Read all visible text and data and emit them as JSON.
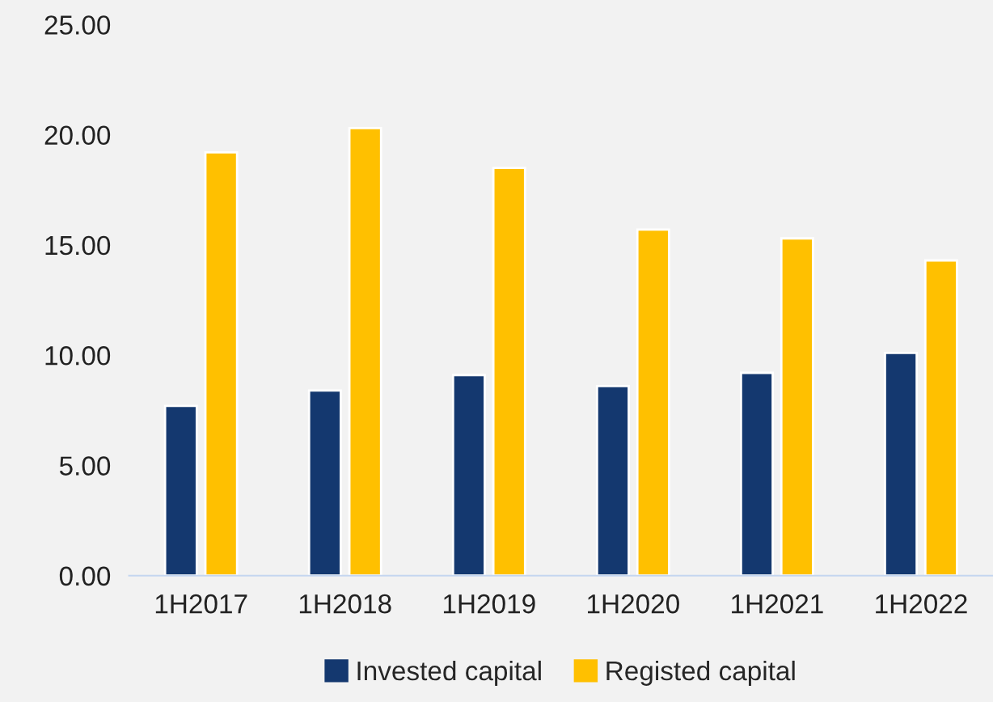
{
  "chart_data": {
    "type": "bar",
    "categories": [
      "1H2017",
      "1H2018",
      "1H2019",
      "1H2020",
      "1H2021",
      "1H2022"
    ],
    "series": [
      {
        "name": "Invested capital",
        "color": "#14386f",
        "values": [
          7.7,
          8.4,
          9.1,
          8.6,
          9.2,
          10.1
        ]
      },
      {
        "name": "Registed capital",
        "color": "#ffc000",
        "values": [
          19.2,
          20.3,
          18.5,
          15.7,
          15.3,
          14.3
        ]
      }
    ],
    "ylim": [
      0,
      25
    ],
    "yticks": [
      {
        "value": 0,
        "label": "0.00"
      },
      {
        "value": 5,
        "label": "5.00"
      },
      {
        "value": 10,
        "label": "10.00"
      },
      {
        "value": 15,
        "label": "15.00"
      },
      {
        "value": 20,
        "label": "20.00"
      },
      {
        "value": 25,
        "label": "25.00"
      }
    ],
    "grid": false,
    "legend": "bottom"
  }
}
